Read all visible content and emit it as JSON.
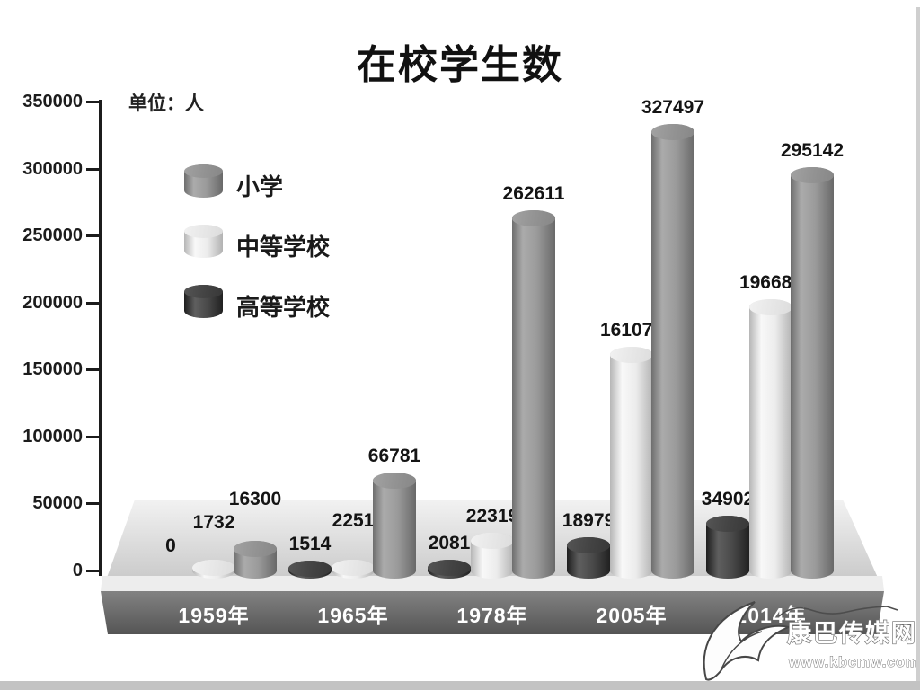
{
  "title": "在校学生数",
  "unit_label": "单位：人",
  "watermark": {
    "logo": "kbcmw-leaf-logo",
    "name": "康巴传媒网",
    "url": "www.kbcmw.com"
  },
  "chart_data": {
    "type": "bar",
    "style": "3d-cylinder",
    "title": "在校学生数",
    "ylabel_unit": "单位：人",
    "ylim": [
      0,
      350000
    ],
    "ytick_step": 50000,
    "yticks": [
      0,
      50000,
      100000,
      150000,
      200000,
      250000,
      300000,
      350000
    ],
    "grid": false,
    "categories": [
      "1959年",
      "1965年",
      "1978年",
      "2005年",
      "2014年"
    ],
    "series": [
      {
        "name": "高等学校",
        "color_key": "dark",
        "color": "#3d3d3d",
        "values": [
          0,
          1514,
          2081,
          18979,
          34902
        ]
      },
      {
        "name": "中等学校",
        "color_key": "light",
        "color": "#e3e3e3",
        "values": [
          1732,
          2251,
          22319,
          161075,
          196683
        ]
      },
      {
        "name": "小学",
        "color_key": "gray",
        "color": "#8c8c8c",
        "values": [
          16300,
          66781,
          262611,
          327497,
          295142
        ]
      }
    ],
    "legend": [
      {
        "name": "小学",
        "color_key": "gray"
      },
      {
        "name": "中等学校",
        "color_key": "light"
      },
      {
        "name": "高等学校",
        "color_key": "dark"
      }
    ],
    "legend_position": "upper-left",
    "value_labels_shown": true
  }
}
